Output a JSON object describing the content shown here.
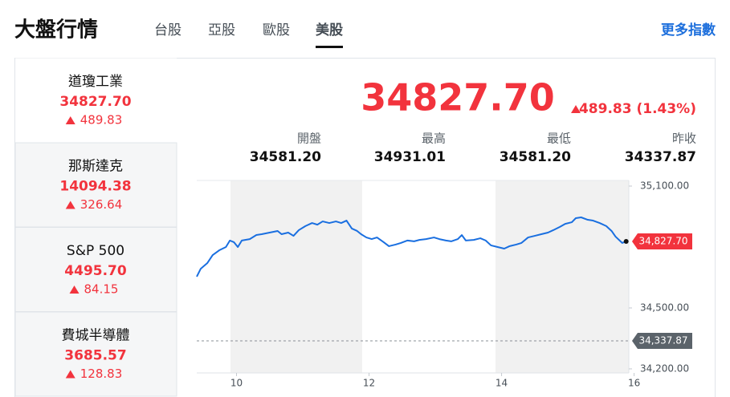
{
  "header": {
    "title": "大盤行情",
    "tabs": [
      "台股",
      "亞股",
      "歐股",
      "美股"
    ],
    "active_tab": 3,
    "more_link": "更多指數"
  },
  "sidebar": {
    "items": [
      {
        "name": "道瓊工業",
        "price": "34827.70",
        "change": "489.83"
      },
      {
        "name": "那斯達克",
        "price": "14094.38",
        "change": "326.64"
      },
      {
        "name": "S&P 500",
        "price": "4495.70",
        "change": "84.15"
      },
      {
        "name": "費城半導體",
        "price": "3685.57",
        "change": "128.83"
      }
    ]
  },
  "quote": {
    "price": "34827.70",
    "change": "489.83 (1.43%)"
  },
  "stats": [
    {
      "label": "開盤",
      "value": "34581.20"
    },
    {
      "label": "最高",
      "value": "34931.01"
    },
    {
      "label": "最低",
      "value": "34581.20"
    },
    {
      "label": "昨收",
      "value": "34337.87"
    }
  ],
  "chart_data": {
    "type": "line",
    "color": "#1a6fe0",
    "grid": false,
    "x": [
      9.4,
      9.46,
      9.56,
      9.64,
      9.74,
      9.84,
      9.9,
      9.96,
      10.02,
      10.08,
      10.2,
      10.3,
      10.38,
      10.5,
      10.62,
      10.68,
      10.78,
      10.86,
      10.94,
      11.04,
      11.14,
      11.22,
      11.3,
      11.4,
      11.5,
      11.58,
      11.66,
      11.74,
      11.82,
      11.88,
      11.96,
      12.04,
      12.12,
      12.22,
      12.3,
      12.4,
      12.48,
      12.58,
      12.68,
      12.76,
      12.86,
      12.98,
      13.06,
      13.16,
      13.24,
      13.34,
      13.4,
      13.46,
      13.58,
      13.68,
      13.76,
      13.84,
      13.94,
      14.04,
      14.12,
      14.22,
      14.3,
      14.4,
      14.5,
      14.6,
      14.7,
      14.78,
      14.88,
      14.96,
      15.06,
      15.12,
      15.2,
      15.3,
      15.38,
      15.48,
      15.58,
      15.66,
      15.72,
      15.82,
      15.88
    ],
    "values": [
      34654,
      34693,
      34721,
      34760,
      34784,
      34800,
      34832,
      34824,
      34800,
      34832,
      34839,
      34859,
      34863,
      34871,
      34879,
      34863,
      34871,
      34855,
      34883,
      34903,
      34918,
      34910,
      34926,
      34918,
      34926,
      34918,
      34930,
      34891,
      34879,
      34863,
      34847,
      34839,
      34847,
      34824,
      34804,
      34812,
      34820,
      34832,
      34828,
      34835,
      34839,
      34847,
      34839,
      34832,
      34828,
      34839,
      34859,
      34832,
      34835,
      34843,
      34832,
      34808,
      34800,
      34792,
      34804,
      34812,
      34820,
      34847,
      34855,
      34863,
      34871,
      34883,
      34899,
      34914,
      34922,
      34942,
      34946,
      34934,
      34930,
      34918,
      34903,
      34879,
      34851,
      34820,
      34827.7
    ],
    "xlim": [
      9.4,
      15.92
    ],
    "xticks": [
      10,
      12,
      14,
      16
    ],
    "ylim": [
      34180,
      35130
    ],
    "yticks": [
      {
        "value": 34200,
        "label": "34,200.00"
      },
      {
        "value": 34500,
        "label": "34,500.00"
      },
      {
        "value": 35100,
        "label": "35,100.00"
      }
    ],
    "markers": [
      {
        "value": 34827.7,
        "label": "34,827.70",
        "color": "#f2333d",
        "dashed": false
      },
      {
        "value": 34337.87,
        "label": "34,337.87",
        "color": "#5b636a",
        "dashed": true
      }
    ]
  }
}
